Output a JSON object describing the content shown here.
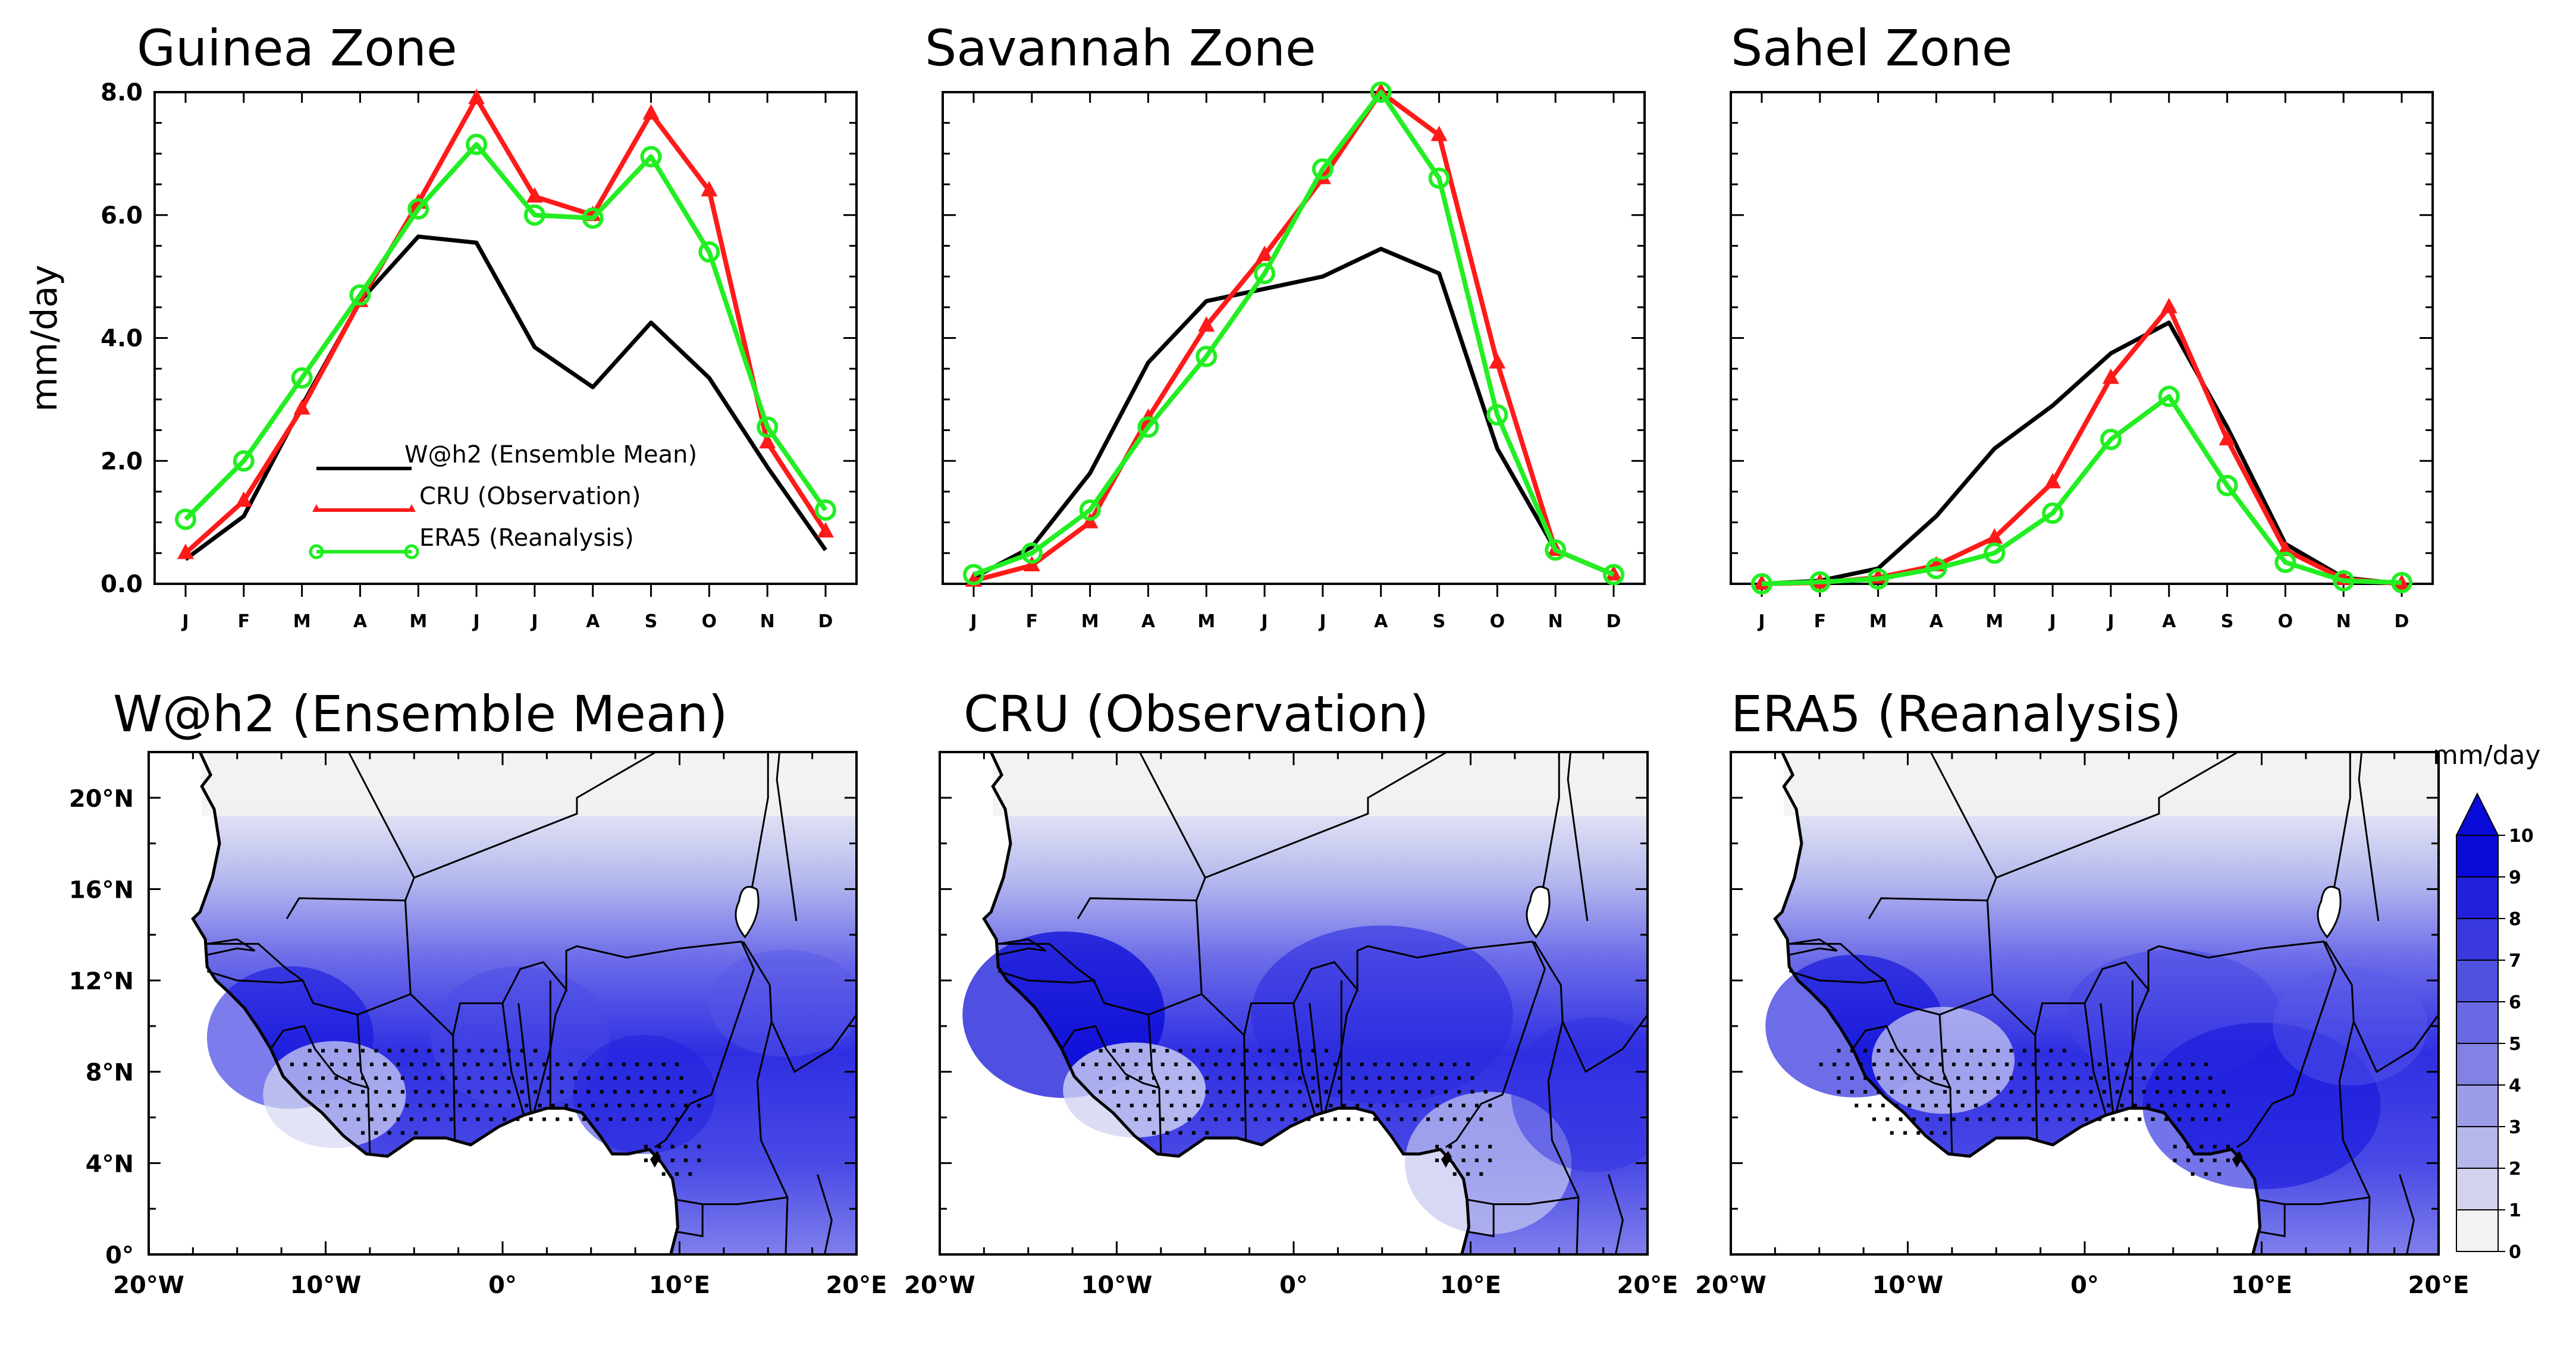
{
  "colors": {
    "whh2": "#000000",
    "cru": "#ff1a1a",
    "era5": "#22ee22",
    "map_ocean": "#ffffff",
    "map_land_low": "#f2f2f2",
    "map_max": "#0a0ad8"
  },
  "line_panels": {
    "ylabel": "mm/day",
    "y_ticks": [
      "0.0",
      "2.0",
      "4.0",
      "6.0",
      "8.0"
    ],
    "legend": [
      "W@h2 (Ensemble Mean)",
      "CRU (Observation)",
      "ERA5 (Reanalysis)"
    ]
  },
  "map_panels": {
    "titles": [
      "W@h2 (Ensemble Mean)",
      "CRU (Observation)",
      "ERA5 (Reanalysis)"
    ],
    "lat_ticks": [
      "0°",
      "4°N",
      "8°N",
      "12°N",
      "16°N",
      "20°N"
    ],
    "lon_ticks": [
      "20°W",
      "10°W",
      "0°",
      "10°E",
      "20°E"
    ],
    "colorbar": {
      "unit": "mm/day",
      "labels": [
        "0",
        "1",
        "2",
        "3",
        "4",
        "5",
        "6",
        "7",
        "8",
        "9",
        "10"
      ]
    }
  },
  "chart_data": [
    {
      "type": "line",
      "title": "Guinea Zone",
      "xlabel": "",
      "ylabel": "mm/day",
      "ylim": [
        0,
        8
      ],
      "categories": [
        "J",
        "F",
        "M",
        "A",
        "M",
        "J",
        "J",
        "A",
        "S",
        "O",
        "N",
        "D"
      ],
      "series": [
        {
          "name": "W@h2 (Ensemble Mean)",
          "values": [
            0.4,
            1.1,
            2.9,
            4.6,
            5.65,
            5.55,
            3.85,
            3.2,
            4.25,
            3.35,
            1.9,
            0.55
          ]
        },
        {
          "name": "CRU (Observation)",
          "values": [
            0.5,
            1.35,
            2.85,
            4.6,
            6.2,
            7.9,
            6.3,
            6.0,
            7.65,
            6.4,
            2.3,
            0.85
          ]
        },
        {
          "name": "ERA5 (Reanalysis)",
          "values": [
            1.05,
            2.0,
            3.35,
            4.7,
            6.1,
            7.15,
            6.0,
            5.95,
            6.95,
            5.4,
            2.55,
            1.2
          ]
        }
      ]
    },
    {
      "type": "line",
      "title": "Savannah Zone",
      "xlabel": "",
      "ylabel": "",
      "ylim": [
        0,
        8
      ],
      "categories": [
        "J",
        "F",
        "M",
        "A",
        "M",
        "J",
        "J",
        "A",
        "S",
        "O",
        "N",
        "D"
      ],
      "series": [
        {
          "name": "W@h2 (Ensemble Mean)",
          "values": [
            0.1,
            0.6,
            1.8,
            3.6,
            4.6,
            4.8,
            5.0,
            5.45,
            5.05,
            2.2,
            0.55,
            0.15
          ]
        },
        {
          "name": "CRU (Observation)",
          "values": [
            0.05,
            0.3,
            1.0,
            2.7,
            4.2,
            5.35,
            6.6,
            8.0,
            7.3,
            3.6,
            0.55,
            0.15
          ]
        },
        {
          "name": "ERA5 (Reanalysis)",
          "values": [
            0.15,
            0.5,
            1.2,
            2.55,
            3.7,
            5.05,
            6.75,
            8.0,
            6.6,
            2.75,
            0.55,
            0.15
          ]
        }
      ]
    },
    {
      "type": "line",
      "title": "Sahel Zone",
      "xlabel": "",
      "ylabel": "",
      "ylim": [
        0,
        8
      ],
      "categories": [
        "J",
        "F",
        "M",
        "A",
        "M",
        "J",
        "J",
        "A",
        "S",
        "O",
        "N",
        "D"
      ],
      "series": [
        {
          "name": "W@h2 (Ensemble Mean)",
          "values": [
            0.0,
            0.05,
            0.25,
            1.1,
            2.2,
            2.9,
            3.75,
            4.25,
            2.55,
            0.65,
            0.1,
            0.0
          ]
        },
        {
          "name": "CRU (Observation)",
          "values": [
            0.0,
            0.02,
            0.1,
            0.3,
            0.75,
            1.65,
            3.35,
            4.5,
            2.35,
            0.55,
            0.08,
            0.0
          ]
        },
        {
          "name": "ERA5 (Reanalysis)",
          "values": [
            0.0,
            0.03,
            0.08,
            0.25,
            0.5,
            1.15,
            2.35,
            3.05,
            1.6,
            0.35,
            0.05,
            0.02
          ]
        }
      ]
    }
  ]
}
